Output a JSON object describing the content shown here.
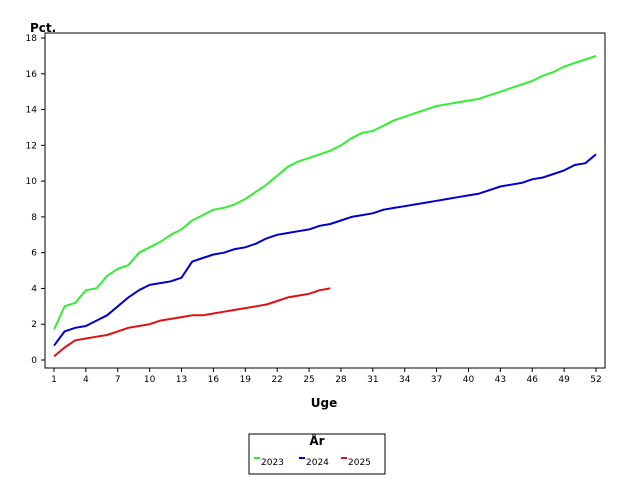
{
  "chart_data": {
    "type": "line",
    "xlabel": "Uge",
    "ylabel": "Pct.",
    "xlim": [
      1,
      52
    ],
    "ylim": [
      0,
      18
    ],
    "xticks": [
      1,
      4,
      7,
      10,
      13,
      16,
      19,
      22,
      25,
      28,
      31,
      34,
      37,
      40,
      43,
      46,
      49,
      52
    ],
    "yticks": [
      0,
      2,
      4,
      6,
      8,
      10,
      12,
      14,
      16,
      18
    ],
    "grid": false,
    "legend": {
      "title": "År",
      "position": "bottom-center"
    },
    "series": [
      {
        "name": "2023",
        "color": "#33ee33",
        "x": [
          1,
          2,
          3,
          4,
          5,
          6,
          7,
          8,
          9,
          10,
          11,
          12,
          13,
          14,
          15,
          16,
          17,
          18,
          19,
          20,
          21,
          22,
          23,
          24,
          25,
          26,
          27,
          28,
          29,
          30,
          31,
          32,
          33,
          34,
          35,
          36,
          37,
          38,
          39,
          40,
          41,
          42,
          43,
          44,
          45,
          46,
          47,
          48,
          49,
          50,
          51,
          52
        ],
        "values": [
          1.7,
          3.0,
          3.2,
          3.9,
          4.0,
          4.7,
          5.1,
          5.3,
          6.0,
          6.3,
          6.6,
          7.0,
          7.3,
          7.8,
          8.1,
          8.4,
          8.5,
          8.7,
          9.0,
          9.4,
          9.8,
          10.3,
          10.8,
          11.1,
          11.3,
          11.5,
          11.7,
          12.0,
          12.4,
          12.7,
          12.8,
          13.1,
          13.4,
          13.6,
          13.8,
          14.0,
          14.2,
          14.3,
          14.4,
          14.5,
          14.6,
          14.8,
          15.0,
          15.2,
          15.4,
          15.6,
          15.9,
          16.1,
          16.4,
          16.6,
          16.8,
          17.0
        ]
      },
      {
        "name": "2024",
        "color": "#0000cc",
        "x": [
          1,
          2,
          3,
          4,
          5,
          6,
          7,
          8,
          9,
          10,
          11,
          12,
          13,
          14,
          15,
          16,
          17,
          18,
          19,
          20,
          21,
          22,
          23,
          24,
          25,
          26,
          27,
          28,
          29,
          30,
          31,
          32,
          33,
          34,
          35,
          36,
          37,
          38,
          39,
          40,
          41,
          42,
          43,
          44,
          45,
          46,
          47,
          48,
          49,
          50,
          51,
          52
        ],
        "values": [
          0.8,
          1.6,
          1.8,
          1.9,
          2.2,
          2.5,
          3.0,
          3.5,
          3.9,
          4.2,
          4.3,
          4.4,
          4.6,
          5.5,
          5.7,
          5.9,
          6.0,
          6.2,
          6.3,
          6.5,
          6.8,
          7.0,
          7.1,
          7.2,
          7.3,
          7.5,
          7.6,
          7.8,
          8.0,
          8.1,
          8.2,
          8.4,
          8.5,
          8.6,
          8.7,
          8.8,
          8.9,
          9.0,
          9.1,
          9.2,
          9.3,
          9.5,
          9.7,
          9.8,
          9.9,
          10.1,
          10.2,
          10.4,
          10.6,
          10.9,
          11.0,
          11.5
        ]
      },
      {
        "name": "2025",
        "color": "#dd1111",
        "x": [
          1,
          2,
          3,
          4,
          5,
          6,
          7,
          8,
          9,
          10,
          11,
          12,
          13,
          14,
          15,
          16,
          17,
          18,
          19,
          20,
          21,
          22,
          23,
          24,
          25,
          26,
          27
        ],
        "values": [
          0.2,
          0.7,
          1.1,
          1.2,
          1.3,
          1.4,
          1.6,
          1.8,
          1.9,
          2.0,
          2.2,
          2.3,
          2.4,
          2.5,
          2.5,
          2.6,
          2.7,
          2.8,
          2.9,
          3.0,
          3.1,
          3.3,
          3.5,
          3.6,
          3.7,
          3.9,
          4.0
        ]
      }
    ]
  }
}
